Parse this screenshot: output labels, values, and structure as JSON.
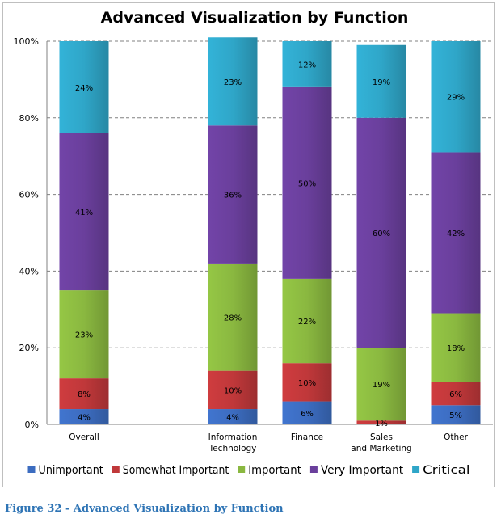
{
  "figure_caption": "Figure 32 - Advanced Visualization by Function",
  "chart_data": {
    "type": "bar",
    "stacked": true,
    "title": "Advanced Visualization by Function",
    "xlabel": "",
    "ylabel": "",
    "ylim": [
      0,
      100
    ],
    "yticks": [
      "0%",
      "20%",
      "40%",
      "60%",
      "80%",
      "100%"
    ],
    "grid": true,
    "legend_position": "bottom",
    "categories": [
      "Overall",
      "",
      "Information Technology",
      "Finance",
      "Sales and Marketing",
      "Other"
    ],
    "series": [
      {
        "name": "Unimportant",
        "color": "#3c6cc0",
        "values": [
          4,
          null,
          4,
          6,
          0,
          5
        ],
        "labels": [
          "4%",
          "",
          "4%",
          "6%",
          "",
          "5%"
        ]
      },
      {
        "name": "Somewhat Important",
        "color": "#c0383a",
        "values": [
          8,
          null,
          10,
          10,
          1,
          6
        ],
        "labels": [
          "8%",
          "",
          "10%",
          "10%",
          "1%",
          "6%"
        ]
      },
      {
        "name": "Important",
        "color": "#8ab840",
        "values": [
          23,
          null,
          28,
          22,
          19,
          18
        ],
        "labels": [
          "23%",
          "",
          "28%",
          "22%",
          "19%",
          "18%"
        ]
      },
      {
        "name": "Very Important",
        "color": "#6a3f9c",
        "values": [
          41,
          null,
          36,
          50,
          60,
          42
        ],
        "labels": [
          "41%",
          "",
          "36%",
          "50%",
          "60%",
          "42%"
        ]
      },
      {
        "name": "Critical",
        "color": "#2fa6c8",
        "values": [
          24,
          null,
          23,
          12,
          19,
          29
        ],
        "labels": [
          "24%",
          "",
          "23%",
          "12%",
          "19%",
          "29%"
        ]
      }
    ]
  }
}
